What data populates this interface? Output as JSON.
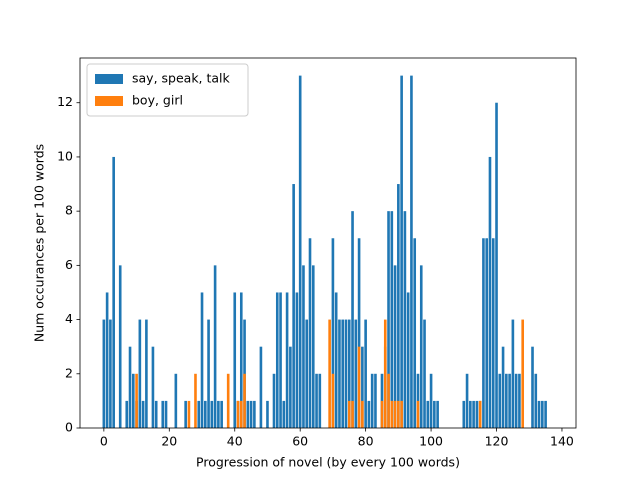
{
  "chart_data": {
    "type": "bar",
    "xlabel": "Progression of novel (by every 100 words)",
    "ylabel": "Num occurances per 100 words",
    "x": [
      0,
      1,
      2,
      3,
      4,
      5,
      6,
      7,
      8,
      9,
      10,
      11,
      12,
      13,
      14,
      15,
      16,
      17,
      18,
      19,
      20,
      21,
      22,
      23,
      24,
      25,
      26,
      27,
      28,
      29,
      30,
      31,
      32,
      33,
      34,
      35,
      36,
      37,
      38,
      39,
      40,
      41,
      42,
      43,
      44,
      45,
      46,
      47,
      48,
      49,
      50,
      51,
      52,
      53,
      54,
      55,
      56,
      57,
      58,
      59,
      60,
      61,
      62,
      63,
      64,
      65,
      66,
      67,
      68,
      69,
      70,
      71,
      72,
      73,
      74,
      75,
      76,
      77,
      78,
      79,
      80,
      81,
      82,
      83,
      84,
      85,
      86,
      87,
      88,
      89,
      90,
      91,
      92,
      93,
      94,
      95,
      96,
      97,
      98,
      99,
      100,
      101,
      102,
      103,
      104,
      105,
      106,
      107,
      108,
      109,
      110,
      111,
      112,
      113,
      114,
      115,
      116,
      117,
      118,
      119,
      120,
      121,
      122,
      123,
      124,
      125,
      126,
      127,
      128,
      129,
      130,
      131,
      132,
      133,
      134,
      135,
      136,
      137
    ],
    "series": [
      {
        "name": "say, speak, talk",
        "color": "#1f77b4",
        "values": [
          4,
          5,
          4,
          10,
          0,
          6,
          0,
          1,
          3,
          2,
          1,
          4,
          1,
          4,
          0,
          3,
          1,
          0,
          1,
          1,
          0,
          0,
          2,
          0,
          0,
          1,
          0,
          0,
          0,
          1,
          5,
          1,
          4,
          1,
          6,
          1,
          1,
          0,
          0,
          0,
          5,
          1,
          5,
          4,
          1,
          1,
          1,
          0,
          3,
          0,
          1,
          0,
          2,
          5,
          5,
          1,
          5,
          3,
          9,
          5,
          13,
          6,
          4,
          7,
          6,
          2,
          2,
          0,
          0,
          0,
          7,
          5,
          4,
          4,
          4,
          4,
          8,
          4,
          7,
          3,
          4,
          1,
          2,
          2,
          0,
          2,
          3,
          8,
          8,
          6,
          9,
          13,
          8,
          5,
          13,
          7,
          2,
          6,
          4,
          1,
          2,
          1,
          1,
          0,
          0,
          0,
          0,
          0,
          0,
          0,
          1,
          2,
          1,
          1,
          1,
          1,
          7,
          7,
          10,
          7,
          12,
          2,
          3,
          2,
          2,
          4,
          2,
          2,
          0,
          0,
          0,
          3,
          2,
          1,
          1,
          1,
          0,
          0
        ]
      },
      {
        "name": "boy, girl",
        "color": "#ff7f0e",
        "values": [
          0,
          0,
          0,
          0,
          0,
          0,
          0,
          0,
          0,
          0,
          2,
          0,
          0,
          0,
          0,
          0,
          0,
          0,
          0,
          0,
          0,
          0,
          0,
          0,
          0,
          0,
          1,
          0,
          2,
          0,
          0,
          0,
          0,
          0,
          0,
          0,
          0,
          0,
          2,
          0,
          0,
          1,
          1,
          2,
          0,
          0,
          0,
          0,
          0,
          0,
          0,
          0,
          0,
          0,
          0,
          0,
          0,
          0,
          0,
          0,
          0,
          0,
          0,
          0,
          0,
          0,
          0,
          0,
          0,
          4,
          2,
          0,
          0,
          0,
          0,
          1,
          1,
          0,
          3,
          1,
          0,
          0,
          0,
          0,
          0,
          1,
          4,
          2,
          1,
          1,
          1,
          1,
          0,
          0,
          0,
          0,
          1,
          0,
          0,
          0,
          0,
          0,
          0,
          0,
          0,
          0,
          0,
          0,
          0,
          0,
          0,
          0,
          0,
          0,
          0,
          1,
          0,
          0,
          0,
          0,
          0,
          0,
          0,
          0,
          0,
          0,
          0,
          0,
          4,
          0,
          0,
          0,
          0,
          0,
          0,
          0,
          0,
          0
        ]
      }
    ],
    "xlim": [
      -7.29,
      144.29
    ],
    "ylim": [
      0,
      13.65
    ],
    "xticks": [
      0,
      20,
      40,
      60,
      80,
      100,
      120,
      140
    ],
    "yticks": [
      0,
      2,
      4,
      6,
      8,
      10,
      12
    ],
    "legend": "upper left"
  }
}
